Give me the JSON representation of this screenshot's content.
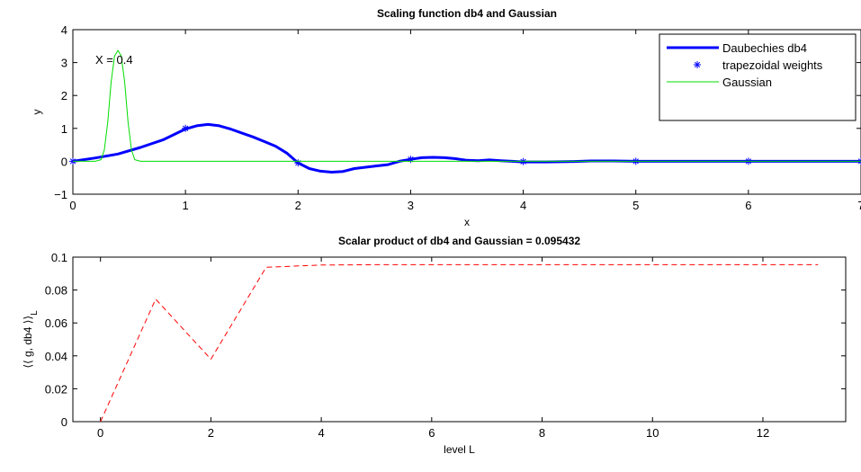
{
  "chart_data": [
    {
      "type": "line",
      "title": "Scaling function db4 and Gaussian",
      "xlabel": "x",
      "ylabel": "y",
      "xlim": [
        0,
        7
      ],
      "ylim": [
        -1,
        4
      ],
      "xticks": [
        0,
        1,
        2,
        3,
        4,
        5,
        6,
        7
      ],
      "xtick_labels": [
        "0",
        "1",
        "2",
        "3",
        "4",
        "5",
        "6",
        "7"
      ],
      "yticks": [
        -1,
        0,
        1,
        2,
        3,
        4
      ],
      "ytick_labels": [
        "−1",
        "0",
        "1",
        "2",
        "3",
        "4"
      ],
      "grid": false,
      "legend_position": "top-right",
      "annotation": "X = 0.4",
      "series": [
        {
          "name": "Daubechies db4",
          "style": "line",
          "color": "#0000ff",
          "x": [
            0,
            0.2,
            0.4,
            0.6,
            0.8,
            1.0,
            1.1,
            1.2,
            1.3,
            1.4,
            1.5,
            1.6,
            1.7,
            1.8,
            1.9,
            2.0,
            2.1,
            2.2,
            2.3,
            2.4,
            2.5,
            2.6,
            2.7,
            2.8,
            2.9,
            3.0,
            3.1,
            3.2,
            3.3,
            3.4,
            3.5,
            3.6,
            3.7,
            3.8,
            3.9,
            4.0,
            4.2,
            4.4,
            4.6,
            4.8,
            5.0,
            5.5,
            6.0,
            6.5,
            7.0
          ],
          "y": [
            0,
            0.1,
            0.22,
            0.42,
            0.65,
            0.98,
            1.08,
            1.12,
            1.08,
            0.98,
            0.86,
            0.74,
            0.6,
            0.46,
            0.25,
            -0.05,
            -0.22,
            -0.3,
            -0.33,
            -0.31,
            -0.22,
            -0.18,
            -0.14,
            -0.1,
            0.0,
            0.06,
            0.11,
            0.12,
            0.11,
            0.08,
            0.03,
            0.02,
            0.04,
            0.02,
            0.0,
            -0.02,
            -0.02,
            -0.01,
            0.01,
            0.01,
            0.0,
            0.0,
            0.0,
            0.0,
            0.0
          ]
        },
        {
          "name": "trapezoidal weights",
          "style": "marker-star",
          "color": "#0000ff",
          "x": [
            0,
            1,
            2,
            3,
            4,
            5,
            6,
            7
          ],
          "y": [
            0,
            1.0,
            -0.05,
            0.06,
            -0.01,
            0.0,
            0.0,
            0.0
          ]
        },
        {
          "name": "Gaussian",
          "style": "line",
          "color": "#00dd00",
          "x": [
            0,
            0.2,
            0.25,
            0.28,
            0.31,
            0.34,
            0.37,
            0.4,
            0.43,
            0.46,
            0.49,
            0.52,
            0.55,
            0.6,
            7.0
          ],
          "y": [
            0,
            0.0,
            0.05,
            0.35,
            1.2,
            2.4,
            3.2,
            3.37,
            3.2,
            2.4,
            1.2,
            0.35,
            0.05,
            0.0,
            0.0
          ]
        }
      ]
    },
    {
      "type": "line",
      "title": "Scalar product of db4 and Gaussian = 0.095432",
      "xlabel": "level L",
      "ylabel": "⟨⟨ g, db4 ⟩⟩",
      "ylabel_subscript": "L",
      "xlim": [
        -0.5,
        13.5
      ],
      "ylim": [
        0,
        0.1
      ],
      "xticks": [
        0,
        2,
        4,
        6,
        8,
        10,
        12
      ],
      "xtick_labels": [
        "0",
        "2",
        "4",
        "6",
        "8",
        "10",
        "12"
      ],
      "yticks": [
        0,
        0.02,
        0.04,
        0.06,
        0.08,
        0.1
      ],
      "ytick_labels": [
        "0",
        "0.02",
        "0.04",
        "0.06",
        "0.08",
        "0.1"
      ],
      "grid": false,
      "series": [
        {
          "style": "dashed",
          "color": "#ff0000",
          "x": [
            0,
            1,
            2,
            3,
            4,
            5,
            6,
            7,
            8,
            9,
            10,
            11,
            12,
            13
          ],
          "y": [
            0,
            0.0745,
            0.038,
            0.0938,
            0.0952,
            0.0954,
            0.0954,
            0.0954,
            0.0954,
            0.0954,
            0.0954,
            0.0954,
            0.0954,
            0.0954
          ]
        }
      ]
    }
  ]
}
